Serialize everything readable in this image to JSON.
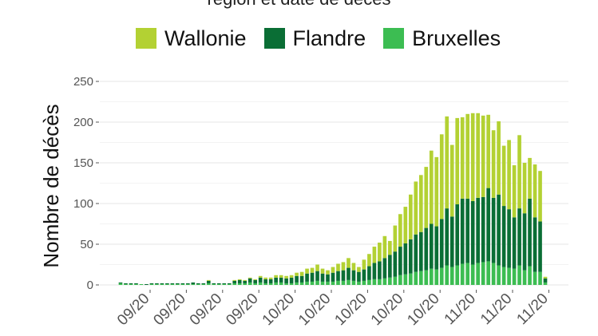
{
  "chart_data": {
    "type": "bar",
    "stacked": true,
    "title": "région et date de décès",
    "ylabel": "Nombre de décès",
    "xlabel": "",
    "ylim": [
      0,
      250
    ],
    "yticks": [
      "0",
      "50",
      "100",
      "150",
      "200",
      "250"
    ],
    "ytick_values": [
      0,
      50,
      100,
      150,
      200,
      250
    ],
    "grid": true,
    "legend_position": "top",
    "xtick_labels": [
      "09/20",
      "09/20",
      "09/20",
      "09/20",
      "10/20",
      "10/20",
      "10/20",
      "10/20",
      "10/20",
      "11/20",
      "11/20",
      "11/20"
    ],
    "series": [
      {
        "name": "Bruxelles",
        "color": "#3cbd52",
        "values": [
          2,
          1,
          1,
          1,
          1,
          0,
          1,
          1,
          1,
          1,
          1,
          1,
          1,
          1,
          1,
          1,
          1,
          2,
          1,
          1,
          1,
          1,
          2,
          2,
          2,
          3,
          2,
          3,
          2,
          2,
          3,
          3,
          2,
          2,
          3,
          3,
          4,
          4,
          5,
          4,
          4,
          4,
          5,
          5,
          6,
          5,
          4,
          5,
          6,
          7,
          7,
          8,
          9,
          10,
          12,
          13,
          14,
          16,
          17,
          18,
          20,
          19,
          21,
          24,
          22,
          24,
          26,
          27,
          25,
          27,
          28,
          29,
          27,
          24,
          22,
          21,
          20,
          24,
          18,
          23,
          16,
          16,
          3
        ]
      },
      {
        "name": "Flandre",
        "color": "#0a6e35",
        "values": [
          1,
          1,
          1,
          1,
          0,
          1,
          1,
          1,
          1,
          1,
          1,
          1,
          1,
          1,
          2,
          1,
          1,
          3,
          1,
          1,
          1,
          1,
          3,
          4,
          3,
          5,
          4,
          6,
          5,
          5,
          6,
          6,
          6,
          7,
          8,
          8,
          10,
          11,
          12,
          10,
          9,
          11,
          12,
          13,
          15,
          13,
          12,
          14,
          17,
          20,
          22,
          25,
          28,
          31,
          35,
          38,
          42,
          46,
          48,
          52,
          55,
          53,
          60,
          70,
          62,
          75,
          80,
          79,
          78,
          80,
          80,
          90,
          80,
          87,
          75,
          72,
          63,
          70,
          70,
          83,
          67,
          62,
          5
        ]
      },
      {
        "name": "Wallonie",
        "color": "#b3d133",
        "values": [
          0,
          0,
          0,
          0,
          0,
          0,
          0,
          0,
          0,
          0,
          0,
          0,
          0,
          0,
          0,
          0,
          0,
          1,
          0,
          0,
          0,
          0,
          1,
          1,
          1,
          1,
          1,
          2,
          2,
          2,
          3,
          3,
          3,
          3,
          4,
          5,
          6,
          6,
          8,
          6,
          5,
          7,
          9,
          10,
          12,
          9,
          6,
          12,
          15,
          20,
          23,
          27,
          17,
          32,
          40,
          45,
          55,
          65,
          70,
          75,
          90,
          85,
          104,
          113,
          88,
          106,
          100,
          104,
          108,
          104,
          100,
          90,
          83,
          90,
          74,
          85,
          64,
          90,
          62,
          50,
          65,
          62,
          2
        ]
      }
    ]
  }
}
